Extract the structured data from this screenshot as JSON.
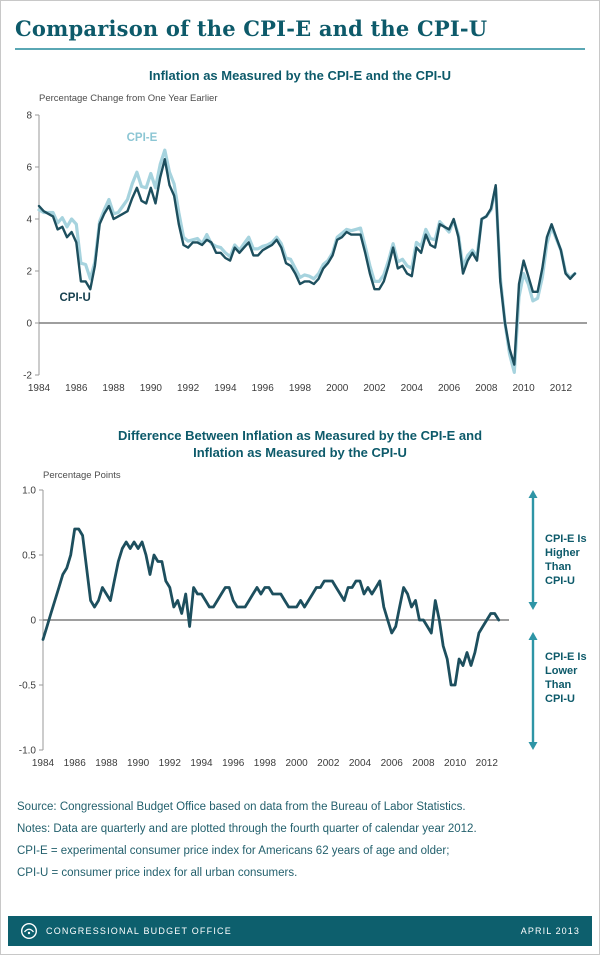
{
  "page": {
    "title": "Comparison of the CPI-E and the CPI-U",
    "footer": {
      "org": "CONGRESSIONAL BUDGET OFFICE",
      "date": "APRIL 2013"
    }
  },
  "notes": [
    "Source: Congressional Budget Office based on data from the Bureau of Labor Statistics.",
    "Notes: Data are quarterly and are plotted through the fourth quarter of calendar year 2012.",
    "CPI-E = experimental consumer price index for Americans 62 years of age and older;",
    "CPI-U = consumer price index for all urban consumers."
  ],
  "colors": {
    "brand_teal": "#0d5a6a",
    "line_dark": "#1d4f5e",
    "line_light": "#a6d3de",
    "arrow": "#2e95a6",
    "zero_line": "#7e7e7e",
    "footer_bg": "#0d5f6d"
  },
  "chart_data": [
    {
      "type": "line",
      "title": "Inflation as Measured by the CPI-E and the CPI-U",
      "ylabel": "Percentage Change from One Year Earlier",
      "xlabel": "",
      "x_start": 1984.0,
      "x_step": 0.25,
      "xlim": [
        1984,
        2013.4
      ],
      "ylim": [
        -2,
        8
      ],
      "yticks": [
        8,
        6,
        4,
        2,
        0,
        -2
      ],
      "ytick_labels": [
        "8",
        "6",
        "4",
        "2",
        "0",
        "-2"
      ],
      "xticks": [
        1984,
        1986,
        1988,
        1990,
        1992,
        1994,
        1996,
        1998,
        2000,
        2002,
        2004,
        2006,
        2008,
        2010,
        2012
      ],
      "grid": false,
      "zero_line": true,
      "series": [
        {
          "name": "CPI-E",
          "color": "#a6d3de",
          "width": 3.2,
          "values": [
            4.35,
            4.25,
            4.25,
            4.25,
            3.85,
            4.05,
            3.7,
            4.0,
            3.8,
            2.3,
            2.25,
            1.7,
            2.35,
            3.9,
            4.35,
            4.75,
            4.2,
            4.25,
            4.5,
            4.75,
            5.35,
            5.8,
            5.25,
            5.2,
            5.75,
            5.2,
            6.1,
            6.65,
            5.8,
            5.35,
            4.25,
            3.3,
            3.15,
            3.2,
            3.25,
            3.05,
            3.4,
            3.05,
            2.95,
            2.9,
            2.7,
            2.55,
            3.0,
            2.8,
            3.05,
            3.3,
            2.85,
            2.85,
            2.95,
            3.0,
            3.1,
            3.3,
            3.05,
            2.5,
            2.45,
            2.1,
            1.75,
            1.85,
            1.8,
            1.7,
            1.9,
            2.25,
            2.4,
            2.7,
            3.3,
            3.45,
            3.6,
            3.55,
            3.6,
            3.65,
            2.95,
            2.2,
            1.6,
            1.6,
            1.85,
            2.4,
            3.05,
            2.35,
            2.45,
            2.2,
            2.1,
            3.1,
            2.95,
            3.6,
            3.25,
            3.2,
            3.9,
            3.7,
            3.5,
            3.95,
            3.4,
            2.15,
            2.6,
            2.8,
            2.55,
            4.0,
            4.1,
            4.35,
            5.2,
            1.75,
            0.0,
            -1.2,
            -1.9,
            1.0,
            1.9,
            1.5,
            0.85,
            0.95,
            1.75,
            3.05,
            3.7,
            3.25,
            2.8,
            1.95,
            1.75,
            1.9
          ]
        },
        {
          "name": "CPI-U",
          "color": "#1d4f5e",
          "width": 2.4,
          "values": [
            4.5,
            4.3,
            4.2,
            4.1,
            3.6,
            3.7,
            3.3,
            3.5,
            3.1,
            1.6,
            1.6,
            1.3,
            2.2,
            3.8,
            4.2,
            4.5,
            4.0,
            4.1,
            4.2,
            4.3,
            4.8,
            5.2,
            4.7,
            4.6,
            5.2,
            4.6,
            5.6,
            6.3,
            5.3,
            4.9,
            3.8,
            3.0,
            2.9,
            3.1,
            3.1,
            3.0,
            3.2,
            3.1,
            2.7,
            2.7,
            2.5,
            2.4,
            2.9,
            2.7,
            2.9,
            3.1,
            2.6,
            2.6,
            2.8,
            2.9,
            3.0,
            3.2,
            2.9,
            2.3,
            2.2,
            1.9,
            1.5,
            1.6,
            1.6,
            1.5,
            1.7,
            2.1,
            2.3,
            2.6,
            3.2,
            3.3,
            3.5,
            3.4,
            3.4,
            3.4,
            2.7,
            1.9,
            1.3,
            1.3,
            1.6,
            2.2,
            2.9,
            2.1,
            2.2,
            1.9,
            1.8,
            2.9,
            2.7,
            3.4,
            3.0,
            2.9,
            3.8,
            3.7,
            3.6,
            4.0,
            3.3,
            1.9,
            2.4,
            2.7,
            2.4,
            4.0,
            4.1,
            4.4,
            5.3,
            1.6,
            0.0,
            -1.0,
            -1.6,
            1.5,
            2.4,
            1.8,
            1.2,
            1.2,
            2.1,
            3.3,
            3.8,
            3.3,
            2.8,
            1.9,
            1.7,
            1.9
          ]
        }
      ],
      "annotations": [
        {
          "text": "CPI-E",
          "x": 1988.7,
          "y": 7.0,
          "color": "#8cc6d4"
        },
        {
          "text": "CPI-U",
          "x": 1985.1,
          "y": 0.85,
          "color": "#16404f"
        }
      ]
    },
    {
      "type": "line",
      "title": "Difference Between Inflation as Measured by the CPI-E and Inflation as Measured by the CPI-U",
      "title_lines": [
        "Difference Between Inflation as Measured by the CPI-E and",
        "Inflation as Measured by the CPI-U"
      ],
      "ylabel": "Percentage Points",
      "xlabel": "",
      "x_start": 1984.0,
      "x_step": 0.25,
      "xlim": [
        1984,
        2013.4
      ],
      "ylim": [
        -1,
        1
      ],
      "yticks": [
        1,
        0.5,
        0,
        -0.5,
        -1
      ],
      "ytick_labels": [
        "1.0",
        "0.5",
        "0",
        "-0.5",
        "-1.0"
      ],
      "xticks": [
        1984,
        1986,
        1988,
        1990,
        1992,
        1994,
        1996,
        1998,
        2000,
        2002,
        2004,
        2006,
        2008,
        2010,
        2012
      ],
      "grid": false,
      "zero_line": true,
      "series": [
        {
          "name": "CPI-E minus CPI-U",
          "color": "#1d4f5e",
          "width": 2.8,
          "values": [
            -0.15,
            -0.05,
            0.05,
            0.15,
            0.25,
            0.35,
            0.4,
            0.5,
            0.7,
            0.7,
            0.65,
            0.4,
            0.15,
            0.1,
            0.15,
            0.25,
            0.2,
            0.15,
            0.3,
            0.45,
            0.55,
            0.6,
            0.55,
            0.6,
            0.55,
            0.6,
            0.5,
            0.35,
            0.5,
            0.45,
            0.45,
            0.3,
            0.25,
            0.1,
            0.15,
            0.05,
            0.2,
            -0.05,
            0.25,
            0.2,
            0.2,
            0.15,
            0.1,
            0.1,
            0.15,
            0.2,
            0.25,
            0.25,
            0.15,
            0.1,
            0.1,
            0.1,
            0.15,
            0.2,
            0.25,
            0.2,
            0.25,
            0.25,
            0.2,
            0.2,
            0.2,
            0.15,
            0.1,
            0.1,
            0.1,
            0.15,
            0.1,
            0.15,
            0.2,
            0.25,
            0.25,
            0.3,
            0.3,
            0.3,
            0.25,
            0.2,
            0.15,
            0.25,
            0.25,
            0.3,
            0.3,
            0.2,
            0.25,
            0.2,
            0.25,
            0.3,
            0.1,
            0.0,
            -0.1,
            -0.05,
            0.1,
            0.25,
            0.2,
            0.1,
            0.15,
            0.0,
            0.0,
            -0.05,
            -0.1,
            0.15,
            0.0,
            -0.2,
            -0.3,
            -0.5,
            -0.5,
            -0.3,
            -0.35,
            -0.25,
            -0.35,
            -0.25,
            -0.1,
            -0.05,
            0.0,
            0.05,
            0.05,
            0.0
          ]
        }
      ],
      "right_annotations": [
        {
          "direction": "up",
          "lines": [
            "CPI-E Is",
            "Higher",
            "Than",
            "CPI-U"
          ]
        },
        {
          "direction": "down",
          "lines": [
            "CPI-E Is",
            "Lower",
            "Than",
            "CPI-U"
          ]
        }
      ]
    }
  ]
}
